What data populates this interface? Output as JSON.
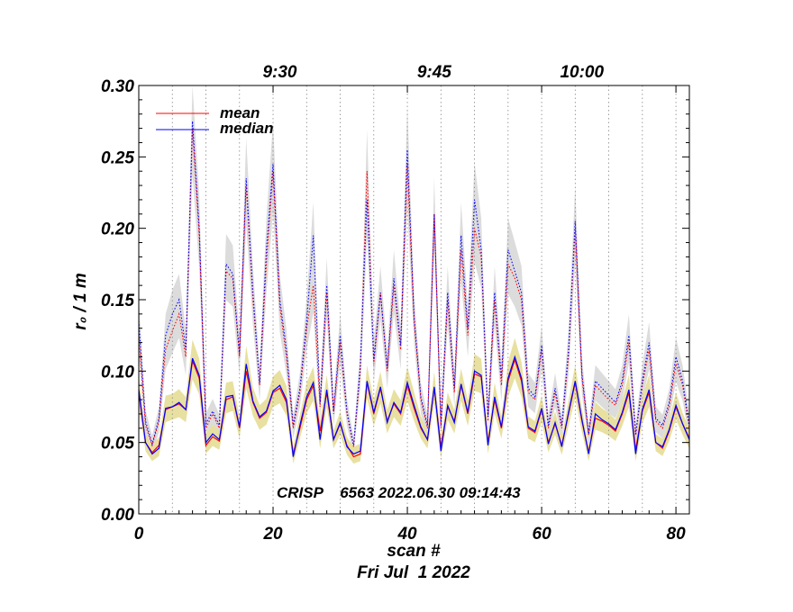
{
  "chart_data": {
    "type": "line",
    "title": "",
    "xlabel": "scan #",
    "date_label": "Fri Jul  1 2022",
    "ylabel": "r₀ / 1 m",
    "annotation": "CRISP    6563 2022.06.30 09:14:43",
    "xlim": [
      0,
      82
    ],
    "ylim": [
      0,
      0.3
    ],
    "x_ticks": [
      "0",
      "20",
      "40",
      "60",
      "80"
    ],
    "y_ticks": [
      "0.00",
      "0.05",
      "0.10",
      "0.15",
      "0.20",
      "0.25",
      "0.30"
    ],
    "top_axis_ticks": [
      {
        "label": "9:30",
        "scan": 21
      },
      {
        "label": "9:45",
        "scan": 44
      },
      {
        "label": "10:00",
        "scan": 66
      }
    ],
    "grid": "vertical dotted lines every 5 scans",
    "legend_position": "top-left",
    "legend": [
      {
        "label": "mean",
        "color": "#ff0000"
      },
      {
        "label": "median",
        "color": "#0000ff"
      }
    ],
    "colors": {
      "mean": "#ff0000",
      "median": "#0000ff",
      "band_low": "#e8e0a0",
      "band_high": "#dcdcdc"
    },
    "x": [
      0,
      1,
      2,
      3,
      4,
      5,
      6,
      7,
      8,
      9,
      10,
      11,
      12,
      13,
      14,
      15,
      16,
      17,
      18,
      19,
      20,
      21,
      22,
      23,
      24,
      25,
      26,
      27,
      28,
      29,
      30,
      31,
      32,
      33,
      34,
      35,
      36,
      37,
      38,
      39,
      40,
      41,
      42,
      43,
      44,
      45,
      46,
      47,
      48,
      49,
      50,
      51,
      52,
      53,
      54,
      55,
      56,
      57,
      58,
      59,
      60,
      61,
      62,
      63,
      64,
      65,
      66,
      67,
      68,
      69,
      70,
      71,
      72,
      73,
      74,
      75,
      76,
      77,
      78,
      79,
      80,
      81,
      82
    ],
    "series": [
      {
        "name": "mean",
        "style": "solid",
        "kind": "low",
        "values": [
          0.085,
          0.05,
          0.043,
          0.048,
          0.073,
          0.075,
          0.077,
          0.073,
          0.107,
          0.095,
          0.048,
          0.054,
          0.051,
          0.08,
          0.082,
          0.06,
          0.1,
          0.078,
          0.067,
          0.071,
          0.085,
          0.088,
          0.078,
          0.042,
          0.06,
          0.08,
          0.09,
          0.058,
          0.085,
          0.052,
          0.063,
          0.048,
          0.04,
          0.042,
          0.092,
          0.07,
          0.088,
          0.065,
          0.077,
          0.07,
          0.09,
          0.074,
          0.06,
          0.052,
          0.088,
          0.047,
          0.075,
          0.065,
          0.09,
          0.07,
          0.098,
          0.096,
          0.05,
          0.08,
          0.06,
          0.093,
          0.108,
          0.093,
          0.06,
          0.057,
          0.073,
          0.05,
          0.063,
          0.048,
          0.07,
          0.092,
          0.065,
          0.043,
          0.067,
          0.065,
          0.062,
          0.058,
          0.07,
          0.085,
          0.045,
          0.072,
          0.085,
          0.05,
          0.046,
          0.058,
          0.075,
          0.063,
          0.053
        ]
      },
      {
        "name": "median",
        "style": "solid",
        "kind": "low",
        "values": [
          0.087,
          0.05,
          0.042,
          0.046,
          0.074,
          0.075,
          0.078,
          0.073,
          0.109,
          0.097,
          0.05,
          0.056,
          0.052,
          0.082,
          0.083,
          0.061,
          0.105,
          0.079,
          0.068,
          0.072,
          0.086,
          0.09,
          0.08,
          0.04,
          0.062,
          0.082,
          0.092,
          0.052,
          0.087,
          0.052,
          0.064,
          0.047,
          0.042,
          0.044,
          0.093,
          0.071,
          0.089,
          0.064,
          0.078,
          0.071,
          0.092,
          0.076,
          0.061,
          0.052,
          0.089,
          0.044,
          0.076,
          0.064,
          0.091,
          0.071,
          0.1,
          0.097,
          0.048,
          0.082,
          0.061,
          0.095,
          0.11,
          0.095,
          0.061,
          0.058,
          0.074,
          0.049,
          0.064,
          0.047,
          0.071,
          0.093,
          0.066,
          0.042,
          0.07,
          0.066,
          0.063,
          0.059,
          0.071,
          0.087,
          0.042,
          0.073,
          0.087,
          0.05,
          0.047,
          0.059,
          0.076,
          0.063,
          0.052
        ]
      },
      {
        "name": "mean",
        "style": "dotted",
        "kind": "high",
        "values": [
          0.125,
          0.062,
          0.048,
          0.065,
          0.115,
          0.128,
          0.14,
          0.11,
          0.27,
          0.195,
          0.06,
          0.07,
          0.06,
          0.17,
          0.165,
          0.11,
          0.23,
          0.15,
          0.09,
          0.175,
          0.24,
          0.145,
          0.11,
          0.06,
          0.085,
          0.13,
          0.16,
          0.075,
          0.155,
          0.07,
          0.12,
          0.07,
          0.047,
          0.1,
          0.24,
          0.105,
          0.155,
          0.1,
          0.16,
          0.115,
          0.245,
          0.135,
          0.08,
          0.06,
          0.21,
          0.06,
          0.15,
          0.085,
          0.185,
          0.125,
          0.2,
          0.18,
          0.065,
          0.15,
          0.09,
          0.175,
          0.165,
          0.15,
          0.085,
          0.08,
          0.115,
          0.06,
          0.085,
          0.06,
          0.11,
          0.2,
          0.095,
          0.055,
          0.09,
          0.085,
          0.08,
          0.076,
          0.09,
          0.12,
          0.055,
          0.09,
          0.115,
          0.065,
          0.06,
          0.075,
          0.105,
          0.09,
          0.06
        ]
      },
      {
        "name": "median",
        "style": "dotted",
        "kind": "high",
        "values": [
          0.135,
          0.065,
          0.049,
          0.067,
          0.125,
          0.14,
          0.15,
          0.115,
          0.275,
          0.2,
          0.063,
          0.072,
          0.062,
          0.175,
          0.168,
          0.112,
          0.235,
          0.155,
          0.092,
          0.185,
          0.245,
          0.15,
          0.115,
          0.062,
          0.088,
          0.135,
          0.195,
          0.078,
          0.16,
          0.072,
          0.125,
          0.072,
          0.048,
          0.105,
          0.22,
          0.108,
          0.155,
          0.102,
          0.165,
          0.118,
          0.255,
          0.138,
          0.082,
          0.062,
          0.21,
          0.062,
          0.155,
          0.088,
          0.195,
          0.13,
          0.22,
          0.185,
          0.068,
          0.155,
          0.095,
          0.185,
          0.17,
          0.155,
          0.088,
          0.082,
          0.118,
          0.062,
          0.088,
          0.062,
          0.115,
          0.205,
          0.098,
          0.056,
          0.093,
          0.088,
          0.083,
          0.078,
          0.093,
          0.125,
          0.056,
          0.093,
          0.12,
          0.067,
          0.062,
          0.078,
          0.11,
          0.093,
          0.062
        ]
      }
    ]
  }
}
